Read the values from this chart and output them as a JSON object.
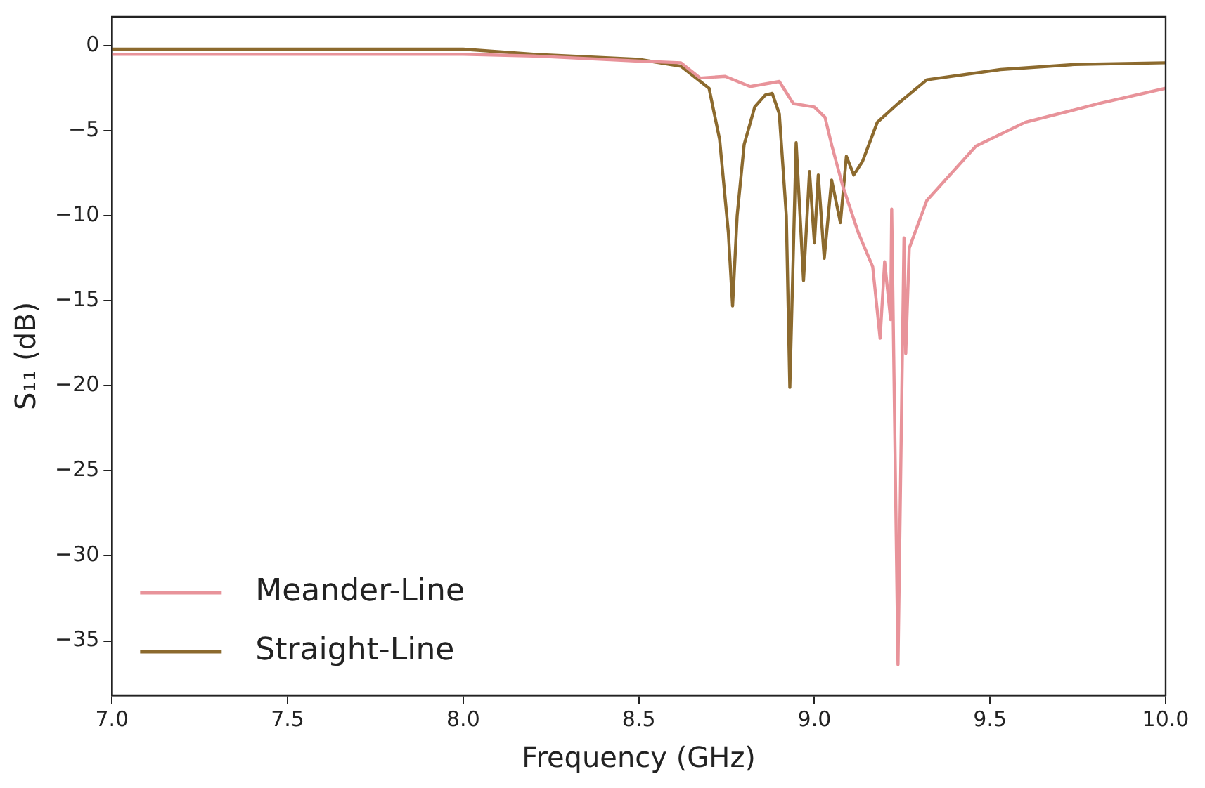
{
  "chart_data": {
    "type": "line",
    "xlabel": "Frequency (GHz)",
    "ylabel": "S₁₁ (dB)",
    "xlim": [
      7,
      10
    ],
    "ylim": [
      -38.2,
      1.7
    ],
    "xticks": [
      {
        "value": 7,
        "label": "7.0"
      },
      {
        "value": 7.5,
        "label": "7.5"
      },
      {
        "value": 8,
        "label": "8.0"
      },
      {
        "value": 8.5,
        "label": "8.5"
      },
      {
        "value": 9,
        "label": "9.0"
      },
      {
        "value": 9.5,
        "label": "9.5"
      },
      {
        "value": 10,
        "label": "10.0"
      }
    ],
    "yticks": [
      0,
      {
        "value": -5,
        "label": "−5"
      },
      {
        "value": -10,
        "label": "−10"
      },
      {
        "value": -15,
        "label": "−15"
      },
      {
        "value": -20,
        "label": "−20"
      },
      {
        "value": -25,
        "label": "−25"
      },
      {
        "value": -30,
        "label": "−30"
      },
      {
        "value": -35,
        "label": "−35"
      }
    ],
    "grid": false,
    "legend": "bottom left",
    "marker": "none",
    "line_style": "solid",
    "series": [
      {
        "name": "Meander-Line",
        "color": "#e8939a",
        "x": [
          7,
          7.5,
          8,
          8.2,
          8.5,
          8.62,
          8.675,
          8.746,
          8.817,
          8.9,
          8.94,
          9.0,
          9.03,
          9.05,
          9.08,
          9.125,
          9.166,
          9.187,
          9.2,
          9.217,
          9.22,
          9.238,
          9.255,
          9.26,
          9.27,
          9.32,
          9.46,
          9.6,
          9.81,
          10
        ],
        "values": [
          -0.5,
          -0.5,
          -0.5,
          -0.6,
          -0.9,
          -1.0,
          -1.9,
          -1.8,
          -2.4,
          -2.1,
          -3.4,
          -3.6,
          -4.2,
          -5.9,
          -8.2,
          -11.0,
          -13.0,
          -17.2,
          -12.7,
          -16.1,
          -9.6,
          -36.4,
          -11.3,
          -18.1,
          -11.9,
          -9.1,
          -5.9,
          -4.5,
          -3.4,
          -2.5
        ]
      },
      {
        "name": "Straight-Line",
        "color": "#8c6a2e",
        "x": [
          7,
          7.5,
          8,
          8.2,
          8.5,
          8.62,
          8.7,
          8.73,
          8.755,
          8.767,
          8.78,
          8.8,
          8.83,
          8.86,
          8.88,
          8.9,
          8.92,
          8.93,
          8.948,
          8.969,
          8.986,
          9.0,
          9.011,
          9.028,
          9.049,
          9.074,
          9.091,
          9.112,
          9.137,
          9.179,
          9.238,
          9.32,
          9.53,
          9.74,
          10
        ],
        "values": [
          -0.2,
          -0.2,
          -0.2,
          -0.5,
          -0.8,
          -1.2,
          -2.5,
          -5.5,
          -11,
          -15.3,
          -10,
          -5.8,
          -3.6,
          -2.9,
          -2.8,
          -4,
          -10,
          -20.1,
          -5.7,
          -13.8,
          -7.4,
          -11.6,
          -7.6,
          -12.5,
          -7.9,
          -10.4,
          -6.5,
          -7.6,
          -6.8,
          -4.5,
          -3.4,
          -2.0,
          -1.4,
          -1.1,
          -1.0
        ]
      }
    ]
  }
}
